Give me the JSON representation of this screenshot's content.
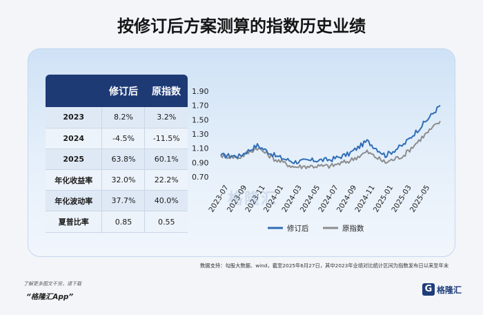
{
  "title": "按修订后方案测算的指数历史业绩",
  "table": {
    "headers": [
      "",
      "修订后",
      "原指数"
    ],
    "rows": [
      {
        "label": "2023",
        "revised": "8.2%",
        "original": "3.2%"
      },
      {
        "label": "2024",
        "revised": "-4.5%",
        "original": "-11.5%"
      },
      {
        "label": "2025",
        "revised": "63.8%",
        "original": "60.1%"
      },
      {
        "label": "年化收益率",
        "revised": "32.0%",
        "original": "22.2%"
      },
      {
        "label": "年化波动率",
        "revised": "37.7%",
        "original": "40.0%"
      },
      {
        "label": "夏普比率",
        "revised": "0.85",
        "original": "0.55"
      }
    ]
  },
  "chart_data": {
    "type": "line",
    "x": [
      "2023-07",
      "2023-09",
      "2023-11",
      "2024-01",
      "2024-03",
      "2024-05",
      "2024-07",
      "2024-09",
      "2024-11",
      "2025-01",
      "2025-03",
      "2025-05",
      "2025-06"
    ],
    "xticks": [
      "2023-07",
      "2023-09",
      "2023-11",
      "2024-01",
      "2024-03",
      "2024-05",
      "2024-07",
      "2024-09",
      "2024-11",
      "2025-01",
      "2025-03",
      "2025-05"
    ],
    "yticks": [
      "1.90",
      "1.70",
      "1.50",
      "1.30",
      "1.10",
      "0.90",
      "0.70"
    ],
    "ylim": [
      0.7,
      1.9
    ],
    "grid": false,
    "legend_position": "bottom",
    "series": [
      {
        "name": "修订后",
        "color": "#2f6db5",
        "values": [
          1.0,
          0.99,
          1.14,
          0.99,
          0.91,
          0.93,
          0.94,
          1.02,
          1.2,
          1.0,
          1.15,
          1.42,
          1.7
        ]
      },
      {
        "name": "原指数",
        "color": "#8c8c8c",
        "values": [
          1.0,
          0.97,
          1.11,
          0.94,
          0.84,
          0.85,
          0.85,
          0.92,
          1.05,
          0.9,
          1.0,
          1.25,
          1.48
        ]
      }
    ]
  },
  "watermark": "格隆汇",
  "source_note": "数据支持：勾股大数据、wind，截至2025年6月27日，其中2023年业绩对比统计区间为指数发布日以来至年末",
  "footer": {
    "line1": "了解更多图文干货，请下载",
    "line2": "“格隆汇App”"
  },
  "brand": {
    "mark": "G",
    "name": "格隆汇"
  }
}
